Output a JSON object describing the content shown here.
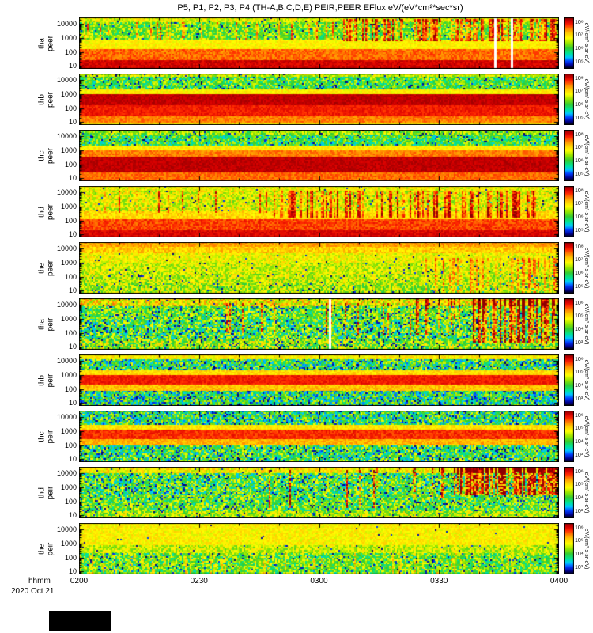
{
  "title": "P5, P1, P2, P3, P4 (TH-A,B,C,D,E) PEIR,PEER EFlux eV/(eV*cm²*sec*sr)",
  "footer": {
    "xunit": "hhmm",
    "date": "2020 Oct 21"
  },
  "xaxis": {
    "ticks": [
      "0200",
      "0230",
      "0300",
      "0330",
      "0400"
    ],
    "fractions": [
      0,
      0.25,
      0.5,
      0.75,
      1
    ]
  },
  "yaxis": {
    "ticks": [
      10000,
      1000,
      100,
      10
    ],
    "range": [
      6,
      30000
    ]
  },
  "chart_data": {
    "type": "heatmap",
    "title": "P5, P1, P2, P3, P4 (TH-A,B,C,D,E) PEIR,PEER EFlux eV/(eV*cm²*sec*sr)",
    "xlabel": "hhmm",
    "date": "2020 Oct 21",
    "time_ticks": [
      "0200",
      "0230",
      "0300",
      "0330",
      "0400"
    ],
    "energy_range_eV": [
      6,
      30000
    ],
    "energy_ticks_eV": [
      10,
      100,
      1000,
      10000
    ],
    "zunit": "eV/(cm²-s-sr-eV)",
    "colormap": [
      [
        0.0,
        0,
        0,
        0
      ],
      [
        0.06,
        0,
        0,
        140
      ],
      [
        0.14,
        0,
        60,
        255
      ],
      [
        0.22,
        0,
        200,
        255
      ],
      [
        0.3,
        0,
        230,
        150
      ],
      [
        0.4,
        50,
        205,
        50
      ],
      [
        0.5,
        150,
        230,
        0
      ],
      [
        0.6,
        255,
        255,
        0
      ],
      [
        0.7,
        255,
        200,
        0
      ],
      [
        0.78,
        255,
        130,
        0
      ],
      [
        0.86,
        255,
        40,
        0
      ],
      [
        0.93,
        215,
        0,
        0
      ],
      [
        1.0,
        140,
        0,
        0
      ]
    ],
    "panels": [
      {
        "probe": "tha",
        "inst": "peer",
        "seed": 11,
        "colorbar_ticks": [
          "10⁸",
          "10⁷",
          "10⁶",
          "10⁵"
        ],
        "bands": [
          {
            "y0": 0.0,
            "y1": 0.1,
            "v": 0.58,
            "n": 0.12,
            "s": 0.02
          },
          {
            "y0": 0.1,
            "y1": 0.42,
            "v": 0.46,
            "n": 0.16,
            "s": 0.04
          },
          {
            "y0": 0.42,
            "y1": 0.6,
            "v": 0.62,
            "n": 0.06,
            "s": 0
          },
          {
            "y0": 0.6,
            "y1": 0.82,
            "v": 0.8,
            "n": 0.06,
            "s": 0
          },
          {
            "y0": 0.82,
            "y1": 1.0,
            "v": 0.93,
            "n": 0.04,
            "s": 0
          }
        ],
        "events": [
          {
            "x0": 0.55,
            "x1": 1.0,
            "y0": 0.03,
            "y1": 0.45,
            "b": 0.33,
            "p": 0.5
          },
          {
            "x0": 0.0,
            "x1": 0.55,
            "y0": 0.1,
            "y1": 0.42,
            "b": 0.28,
            "p": 0.12
          }
        ],
        "gaps": [
          0.865,
          0.9
        ]
      },
      {
        "probe": "thb",
        "inst": "peer",
        "seed": 22,
        "colorbar_ticks": [
          "10⁸",
          "10⁷",
          "10⁶",
          "10⁵"
        ],
        "bands": [
          {
            "y0": 0.0,
            "y1": 0.07,
            "v": 0.55,
            "n": 0.12,
            "s": 0.02
          },
          {
            "y0": 0.07,
            "y1": 0.3,
            "v": 0.42,
            "n": 0.18,
            "s": 0.06
          },
          {
            "y0": 0.3,
            "y1": 0.4,
            "v": 0.62,
            "n": 0.06,
            "s": 0
          },
          {
            "y0": 0.4,
            "y1": 0.62,
            "v": 0.95,
            "n": 0.03,
            "s": 0
          },
          {
            "y0": 0.62,
            "y1": 0.82,
            "v": 0.88,
            "n": 0.04,
            "s": 0
          },
          {
            "y0": 0.82,
            "y1": 0.93,
            "v": 0.78,
            "n": 0.05,
            "s": 0
          },
          {
            "y0": 0.93,
            "y1": 1.0,
            "v": 0.65,
            "n": 0.06,
            "s": 0
          }
        ],
        "events": [],
        "gaps": []
      },
      {
        "probe": "thc",
        "inst": "peer",
        "seed": 33,
        "colorbar_ticks": [
          "10⁸",
          "10⁷",
          "10⁶",
          "10⁵"
        ],
        "bands": [
          {
            "y0": 0.0,
            "y1": 0.08,
            "v": 0.5,
            "n": 0.15,
            "s": 0.05
          },
          {
            "y0": 0.08,
            "y1": 0.3,
            "v": 0.4,
            "n": 0.18,
            "s": 0.06
          },
          {
            "y0": 0.3,
            "y1": 0.4,
            "v": 0.63,
            "n": 0.05,
            "s": 0
          },
          {
            "y0": 0.4,
            "y1": 0.52,
            "v": 0.78,
            "n": 0.05,
            "s": 0
          },
          {
            "y0": 0.52,
            "y1": 0.82,
            "v": 0.95,
            "n": 0.03,
            "s": 0
          },
          {
            "y0": 0.82,
            "y1": 1.0,
            "v": 0.8,
            "n": 0.05,
            "s": 0
          }
        ],
        "events": [],
        "gaps": []
      },
      {
        "probe": "thd",
        "inst": "peer",
        "seed": 44,
        "colorbar_ticks": [
          "10⁸",
          "10⁷",
          "10⁶",
          "10⁵"
        ],
        "bands": [
          {
            "y0": 0.0,
            "y1": 0.1,
            "v": 0.6,
            "n": 0.1,
            "s": 0.01
          },
          {
            "y0": 0.1,
            "y1": 0.48,
            "v": 0.58,
            "n": 0.14,
            "s": 0.02
          },
          {
            "y0": 0.48,
            "y1": 0.65,
            "v": 0.66,
            "n": 0.08,
            "s": 0
          },
          {
            "y0": 0.65,
            "y1": 0.85,
            "v": 0.84,
            "n": 0.06,
            "s": 0
          },
          {
            "y0": 0.85,
            "y1": 1.0,
            "v": 0.92,
            "n": 0.04,
            "s": 0
          }
        ],
        "events": [
          {
            "x0": 0.4,
            "x1": 0.95,
            "y0": 0.08,
            "y1": 0.6,
            "b": 0.24,
            "p": 0.45
          },
          {
            "x0": 0.0,
            "x1": 0.4,
            "y0": 0.1,
            "y1": 0.5,
            "b": 0.2,
            "p": 0.1
          }
        ],
        "gaps": []
      },
      {
        "probe": "the",
        "inst": "peer",
        "seed": 55,
        "colorbar_ticks": [
          "10⁸",
          "10⁷",
          "10⁶",
          "10⁵"
        ],
        "bands": [
          {
            "y0": 0.0,
            "y1": 0.1,
            "v": 0.74,
            "n": 0.06,
            "s": 0
          },
          {
            "y0": 0.1,
            "y1": 0.22,
            "v": 0.68,
            "n": 0.08,
            "s": 0
          },
          {
            "y0": 0.22,
            "y1": 0.4,
            "v": 0.6,
            "n": 0.1,
            "s": 0.01
          },
          {
            "y0": 0.4,
            "y1": 0.62,
            "v": 0.56,
            "n": 0.12,
            "s": 0.02
          },
          {
            "y0": 0.62,
            "y1": 0.8,
            "v": 0.55,
            "n": 0.14,
            "s": 0.03
          },
          {
            "y0": 0.8,
            "y1": 1.0,
            "v": 0.52,
            "n": 0.16,
            "s": 0.04
          }
        ],
        "events": [
          {
            "x0": 0.72,
            "x1": 1.0,
            "y0": 0.3,
            "y1": 1.0,
            "b": 0.16,
            "p": 0.4
          }
        ],
        "gaps": []
      },
      {
        "probe": "tha",
        "inst": "peir",
        "seed": 66,
        "colorbar_ticks": [
          "10⁶",
          "10⁵",
          "10⁴",
          "10³"
        ],
        "bands": [
          {
            "y0": 0.0,
            "y1": 0.14,
            "v": 0.62,
            "n": 0.18,
            "s": 0.03
          },
          {
            "y0": 0.14,
            "y1": 0.4,
            "v": 0.45,
            "n": 0.2,
            "s": 0.08
          },
          {
            "y0": 0.4,
            "y1": 0.78,
            "v": 0.42,
            "n": 0.22,
            "s": 0.1
          },
          {
            "y0": 0.78,
            "y1": 1.0,
            "v": 0.5,
            "n": 0.2,
            "s": 0.06
          }
        ],
        "events": [
          {
            "x0": 0.82,
            "x1": 1.0,
            "y0": 0.0,
            "y1": 0.85,
            "b": 0.42,
            "p": 0.75
          },
          {
            "x0": 0.7,
            "x1": 0.82,
            "y0": 0.0,
            "y1": 0.7,
            "b": 0.34,
            "p": 0.3
          },
          {
            "x0": 0.3,
            "x1": 0.7,
            "y0": 0.08,
            "y1": 0.7,
            "b": 0.3,
            "p": 0.06
          }
        ],
        "gaps": [
          0.52
        ]
      },
      {
        "probe": "thb",
        "inst": "peir",
        "seed": 77,
        "colorbar_ticks": [
          "10⁶",
          "10⁵",
          "10⁴",
          "10³"
        ],
        "bands": [
          {
            "y0": 0.0,
            "y1": 0.08,
            "v": 0.63,
            "n": 0.08,
            "s": 0
          },
          {
            "y0": 0.08,
            "y1": 0.3,
            "v": 0.38,
            "n": 0.22,
            "s": 0.1
          },
          {
            "y0": 0.3,
            "y1": 0.38,
            "v": 0.66,
            "n": 0.06,
            "s": 0
          },
          {
            "y0": 0.38,
            "y1": 0.58,
            "v": 0.88,
            "n": 0.04,
            "s": 0
          },
          {
            "y0": 0.58,
            "y1": 0.7,
            "v": 0.7,
            "n": 0.06,
            "s": 0
          },
          {
            "y0": 0.7,
            "y1": 1.0,
            "v": 0.36,
            "n": 0.22,
            "s": 0.1
          }
        ],
        "events": [],
        "gaps": []
      },
      {
        "probe": "thc",
        "inst": "peir",
        "seed": 88,
        "colorbar_ticks": [
          "10⁶",
          "10⁵",
          "10⁴",
          "10³"
        ],
        "bands": [
          {
            "y0": 0.0,
            "y1": 0.26,
            "v": 0.38,
            "n": 0.22,
            "s": 0.1
          },
          {
            "y0": 0.26,
            "y1": 0.36,
            "v": 0.65,
            "n": 0.06,
            "s": 0
          },
          {
            "y0": 0.36,
            "y1": 0.56,
            "v": 0.86,
            "n": 0.05,
            "s": 0
          },
          {
            "y0": 0.56,
            "y1": 0.68,
            "v": 0.72,
            "n": 0.06,
            "s": 0
          },
          {
            "y0": 0.68,
            "y1": 1.0,
            "v": 0.4,
            "n": 0.22,
            "s": 0.1
          }
        ],
        "events": [],
        "gaps": []
      },
      {
        "probe": "thd",
        "inst": "peir",
        "seed": 99,
        "colorbar_ticks": [
          "10⁶",
          "10⁵",
          "10⁴",
          "10³"
        ],
        "bands": [
          {
            "y0": 0.0,
            "y1": 0.12,
            "v": 0.62,
            "n": 0.12,
            "s": 0.02
          },
          {
            "y0": 0.12,
            "y1": 0.55,
            "v": 0.42,
            "n": 0.22,
            "s": 0.09
          },
          {
            "y0": 0.55,
            "y1": 0.85,
            "v": 0.44,
            "n": 0.2,
            "s": 0.08
          },
          {
            "y0": 0.85,
            "y1": 1.0,
            "v": 0.52,
            "n": 0.16,
            "s": 0.04
          }
        ],
        "events": [
          {
            "x0": 0.78,
            "x1": 1.0,
            "y0": 0.0,
            "y1": 0.55,
            "b": 0.45,
            "p": 0.8
          },
          {
            "x0": 0.62,
            "x1": 0.78,
            "y0": 0.0,
            "y1": 0.6,
            "b": 0.3,
            "p": 0.15
          },
          {
            "x0": 0.35,
            "x1": 0.62,
            "y0": 0.05,
            "y1": 0.8,
            "b": 0.4,
            "p": 0.08
          }
        ],
        "gaps": []
      },
      {
        "probe": "the",
        "inst": "peir",
        "seed": 110,
        "colorbar_ticks": [
          "10⁶",
          "10⁵",
          "10⁴",
          "10³"
        ],
        "bands": [
          {
            "y0": 0.0,
            "y1": 0.42,
            "v": 0.62,
            "n": 0.07,
            "s": 0.005
          },
          {
            "y0": 0.42,
            "y1": 0.58,
            "v": 0.55,
            "n": 0.12,
            "s": 0.02
          },
          {
            "y0": 0.58,
            "y1": 1.0,
            "v": 0.45,
            "n": 0.18,
            "s": 0.06
          }
        ],
        "events": [
          {
            "x0": 0.0,
            "x1": 1.0,
            "y0": 0.58,
            "y1": 1.0,
            "b": 0.12,
            "p": 0.2
          }
        ],
        "gaps": []
      }
    ]
  }
}
